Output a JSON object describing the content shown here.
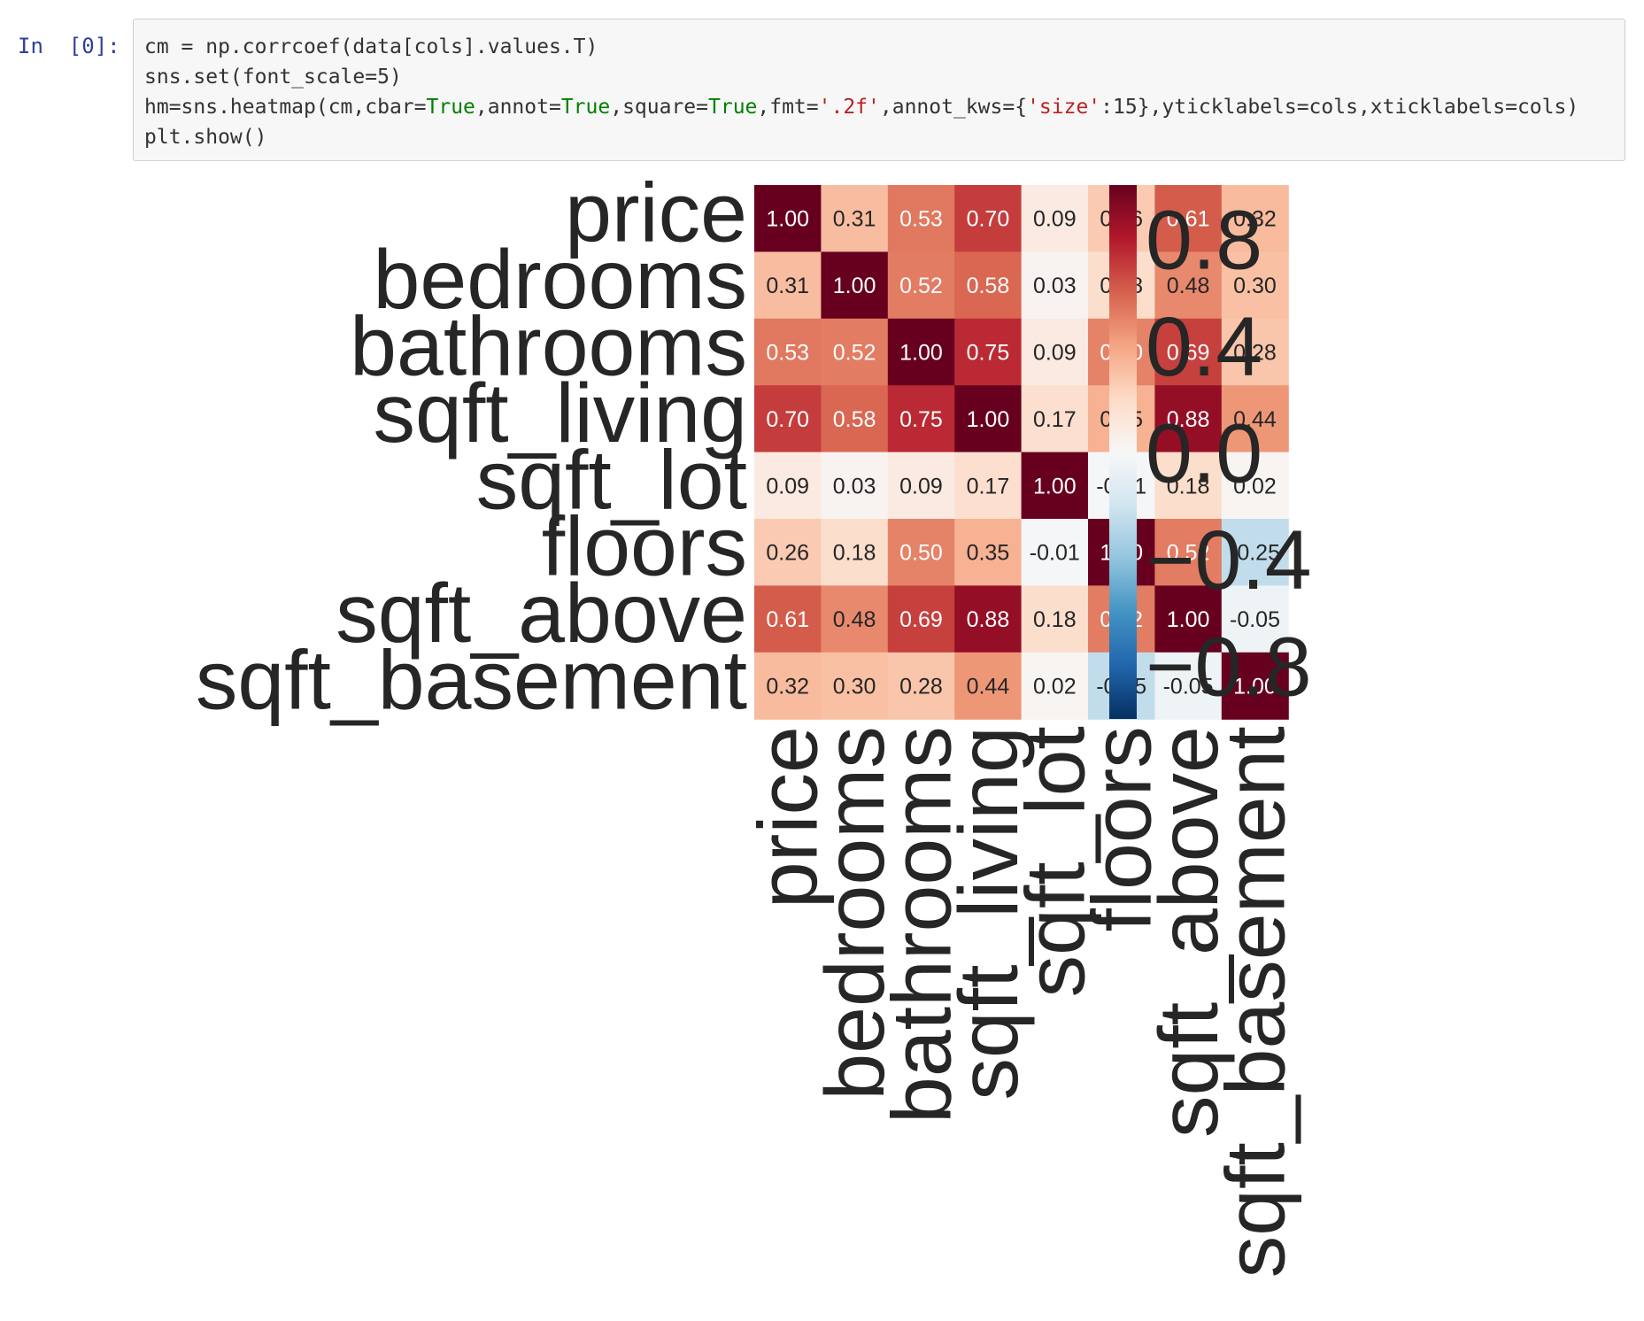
{
  "cell": {
    "prompt": "In  [0]:",
    "code_lines": [
      [
        {
          "t": "cm = np.corrcoef(data[cols].values.T)",
          "c": ""
        }
      ],
      [
        {
          "t": "sns.set(font_scale=5)",
          "c": ""
        }
      ],
      [
        {
          "t": "hm=sns.heatmap(cm,cbar=",
          "c": ""
        },
        {
          "t": "True",
          "c": "kw"
        },
        {
          "t": ",annot=",
          "c": ""
        },
        {
          "t": "True",
          "c": "kw"
        },
        {
          "t": ",square=",
          "c": ""
        },
        {
          "t": "True",
          "c": "kw"
        },
        {
          "t": ",fmt=",
          "c": ""
        },
        {
          "t": "'.2f'",
          "c": "str"
        },
        {
          "t": ",annot_kws={",
          "c": ""
        },
        {
          "t": "'size'",
          "c": "str"
        },
        {
          "t": ":15},yticklabels=cols,xticklabels=cols)",
          "c": ""
        }
      ],
      [
        {
          "t": "plt.show()",
          "c": ""
        }
      ]
    ]
  },
  "chart_data": {
    "type": "heatmap",
    "labels": [
      "price",
      "bedrooms",
      "bathrooms",
      "sqft_living",
      "sqft_lot",
      "floors",
      "sqft_above",
      "sqft_basement"
    ],
    "matrix": [
      [
        1.0,
        0.31,
        0.53,
        0.7,
        0.09,
        0.26,
        0.61,
        0.32
      ],
      [
        0.31,
        1.0,
        0.52,
        0.58,
        0.03,
        0.18,
        0.48,
        0.3
      ],
      [
        0.53,
        0.52,
        1.0,
        0.75,
        0.09,
        0.5,
        0.69,
        0.28
      ],
      [
        0.7,
        0.58,
        0.75,
        1.0,
        0.17,
        0.35,
        0.88,
        0.44
      ],
      [
        0.09,
        0.03,
        0.09,
        0.17,
        1.0,
        -0.01,
        0.18,
        0.02
      ],
      [
        0.26,
        0.18,
        0.5,
        0.35,
        -0.01,
        1.0,
        0.52,
        -0.25
      ],
      [
        0.61,
        0.48,
        0.69,
        0.88,
        0.18,
        0.52,
        1.0,
        -0.05
      ],
      [
        0.32,
        0.3,
        0.28,
        0.44,
        0.02,
        -0.25,
        -0.05,
        1.0
      ]
    ],
    "format": ".2f",
    "colormap": "RdBu_r",
    "vmin": -1,
    "vmax": 1,
    "colorbar_ticks": [
      0.8,
      0.4,
      0.0,
      -0.4,
      -0.8
    ],
    "colorbar_tick_labels": [
      "0.8",
      "0.4",
      "0.0",
      "−0.4",
      "−0.8"
    ],
    "square": true,
    "colorbar": true
  }
}
